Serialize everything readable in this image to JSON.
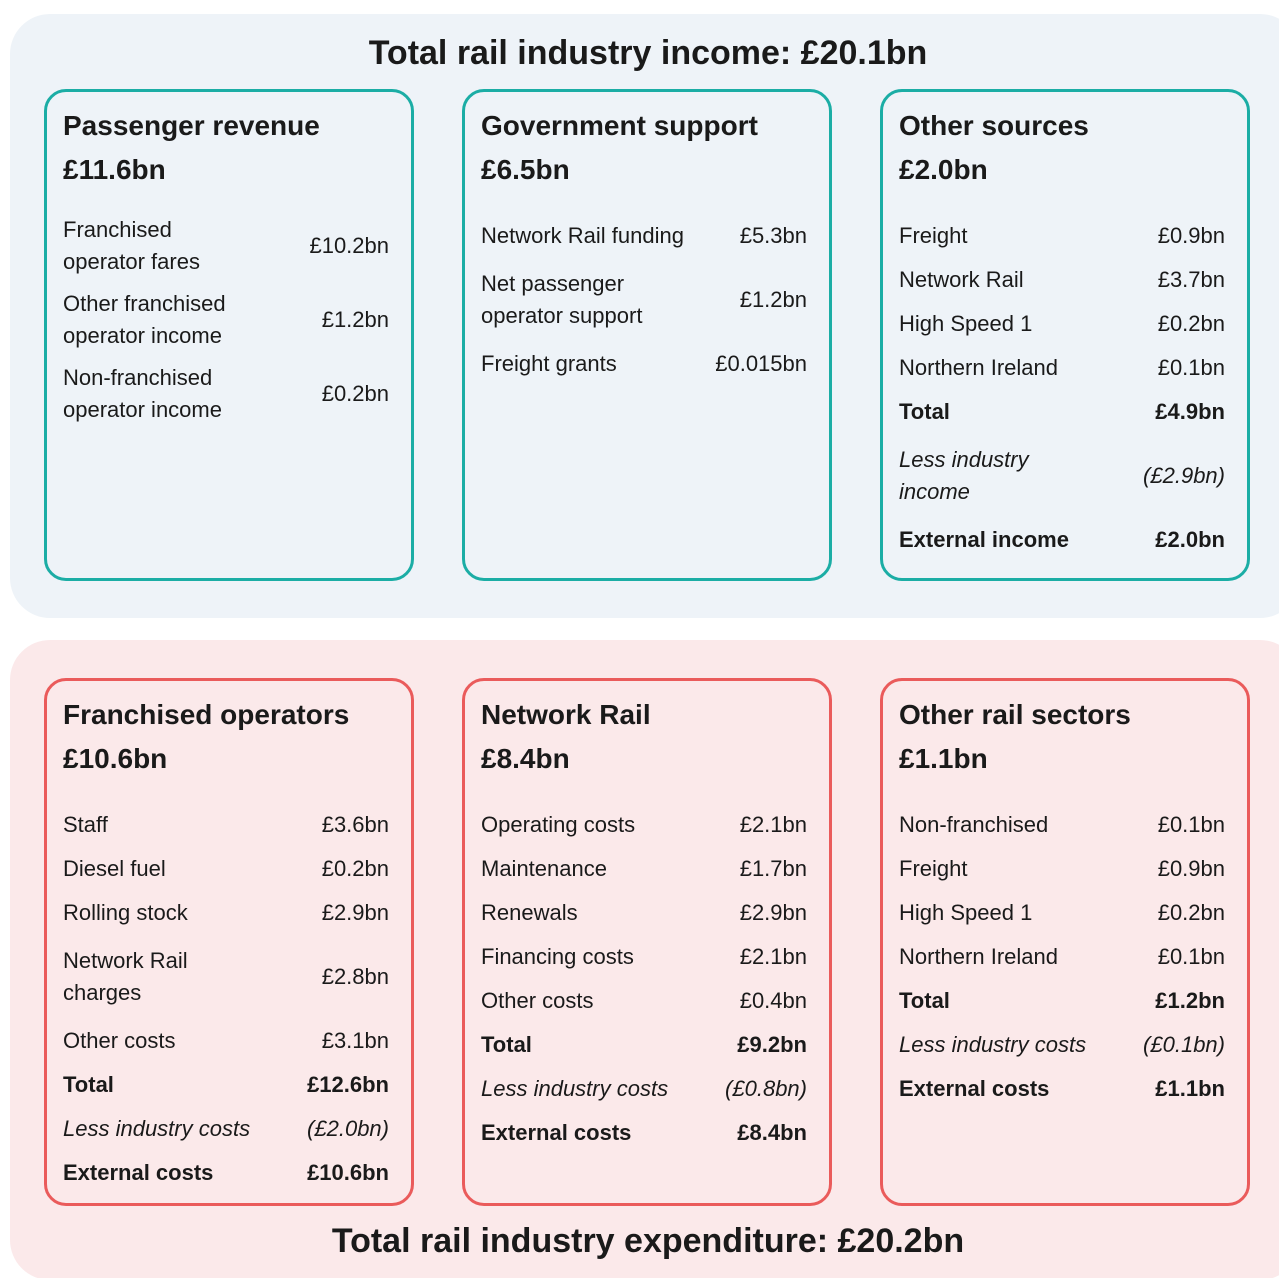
{
  "panels": [
    {
      "title": "Total rail industry income: £20.1bn",
      "position": "top",
      "boxes": [
        {
          "title": "Passenger revenue",
          "amount": "£11.6bn",
          "rows": [
            {
              "label": "Franchised\noperator fares",
              "value": "£10.2bn"
            },
            {
              "label": "Other franchised\noperator income",
              "value": "£1.2bn"
            },
            {
              "label": "Non-franchised\noperator income",
              "value": "£0.2bn"
            }
          ]
        },
        {
          "title": "Government support",
          "amount": "£6.5bn",
          "rows": [
            {
              "label": "Network Rail funding",
              "value": "£5.3bn"
            },
            {
              "label": "Net passenger\noperator support",
              "value": "£1.2bn"
            },
            {
              "label": "Freight grants",
              "value": "£0.015bn"
            }
          ]
        },
        {
          "title": "Other sources",
          "amount": "£2.0bn",
          "rows": [
            {
              "label": "Freight",
              "value": "£0.9bn"
            },
            {
              "label": "Network Rail",
              "value": "£3.7bn"
            },
            {
              "label": "High Speed 1",
              "value": "£0.2bn"
            },
            {
              "label": "Northern Ireland",
              "value": "£0.1bn"
            },
            {
              "label": "Total",
              "value": "£4.9bn",
              "emphasis": "bold"
            },
            {
              "label": "Less industry\nincome",
              "value": "(£2.9bn)",
              "emphasis": "italic"
            },
            {
              "label": "External income",
              "value": "£2.0bn",
              "emphasis": "bold"
            }
          ]
        }
      ]
    },
    {
      "title": "Total rail industry expenditure: £20.2bn",
      "position": "bottom",
      "boxes": [
        {
          "title": "Franchised operators",
          "amount": "£10.6bn",
          "rows": [
            {
              "label": "Staff",
              "value": "£3.6bn"
            },
            {
              "label": "Diesel fuel",
              "value": "£0.2bn"
            },
            {
              "label": "Rolling stock",
              "value": "£2.9bn"
            },
            {
              "label": "Network Rail\ncharges",
              "value": "£2.8bn"
            },
            {
              "label": "Other costs",
              "value": "£3.1bn"
            },
            {
              "label": "Total",
              "value": "£12.6bn",
              "emphasis": "bold"
            },
            {
              "label": "Less industry costs",
              "value": "(£2.0bn)",
              "emphasis": "italic"
            },
            {
              "label": "External costs",
              "value": "£10.6bn",
              "emphasis": "bold"
            }
          ]
        },
        {
          "title": "Network Rail",
          "amount": "£8.4bn",
          "rows": [
            {
              "label": "Operating costs",
              "value": "£2.1bn"
            },
            {
              "label": "Maintenance",
              "value": "£1.7bn"
            },
            {
              "label": "Renewals",
              "value": "£2.9bn"
            },
            {
              "label": "Financing costs",
              "value": "£2.1bn"
            },
            {
              "label": "Other costs",
              "value": "£0.4bn"
            },
            {
              "label": "Total",
              "value": "£9.2bn",
              "emphasis": "bold"
            },
            {
              "label": "Less industry costs",
              "value": "(£0.8bn)",
              "emphasis": "italic"
            },
            {
              "label": "External costs",
              "value": "£8.4bn",
              "emphasis": "bold"
            }
          ]
        },
        {
          "title": "Other rail sectors",
          "amount": "£1.1bn",
          "rows": [
            {
              "label": "Non-franchised",
              "value": "£0.1bn"
            },
            {
              "label": "Freight",
              "value": "£0.9bn"
            },
            {
              "label": "High Speed 1",
              "value": "£0.2bn"
            },
            {
              "label": "Northern Ireland",
              "value": "£0.1bn"
            },
            {
              "label": "Total",
              "value": "£1.2bn",
              "emphasis": "bold"
            },
            {
              "label": "Less industry costs",
              "value": "(£0.1bn)",
              "emphasis": "italic"
            },
            {
              "label": "External costs",
              "value": "£1.1bn",
              "emphasis": "bold"
            }
          ]
        }
      ]
    }
  ]
}
